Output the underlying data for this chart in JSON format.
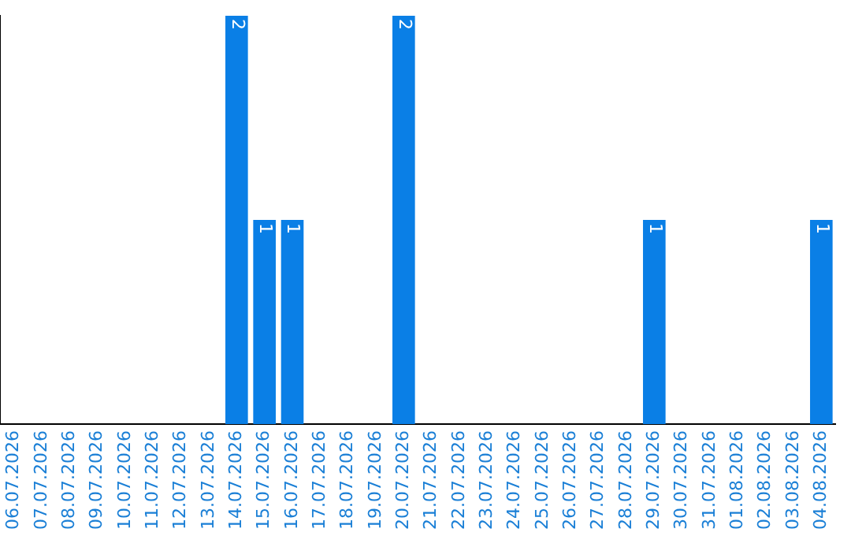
{
  "chart_data": {
    "type": "bar",
    "categories": [
      "06.07.2026",
      "07.07.2026",
      "08.07.2026",
      "09.07.2026",
      "10.07.2026",
      "11.07.2026",
      "12.07.2026",
      "13.07.2026",
      "14.07.2026",
      "15.07.2026",
      "16.07.2026",
      "17.07.2026",
      "18.07.2026",
      "19.07.2026",
      "20.07.2026",
      "21.07.2026",
      "22.07.2026",
      "23.07.2026",
      "24.07.2026",
      "25.07.2026",
      "26.07.2026",
      "27.07.2026",
      "28.07.2026",
      "29.07.2026",
      "30.07.2026",
      "31.07.2026",
      "01.08.2026",
      "02.08.2026",
      "03.08.2026",
      "04.08.2026"
    ],
    "values": [
      0,
      0,
      0,
      0,
      0,
      0,
      0,
      0,
      2,
      1,
      1,
      0,
      0,
      0,
      2,
      0,
      0,
      0,
      0,
      0,
      0,
      0,
      0,
      1,
      0,
      0,
      0,
      0,
      0,
      1
    ],
    "value_labels": [
      null,
      null,
      null,
      null,
      null,
      null,
      null,
      null,
      "2",
      "1",
      "1",
      null,
      null,
      null,
      "2",
      null,
      null,
      null,
      null,
      null,
      null,
      null,
      null,
      "1",
      null,
      null,
      null,
      null,
      null,
      "1"
    ],
    "color": "#0a7fe6",
    "tick_labels": "x",
    "grid": false,
    "legend": false
  }
}
